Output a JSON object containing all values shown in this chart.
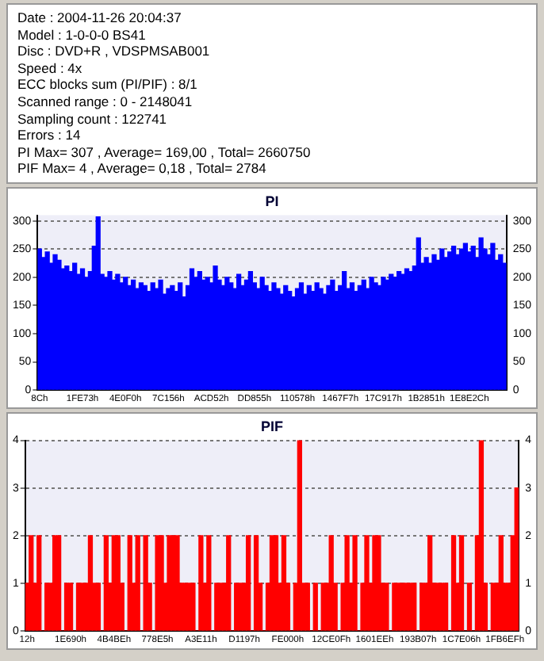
{
  "chart_data": [
    {
      "type": "other",
      "annotations": [
        "Date : 2004-11-26 20:04:37",
        "Model : 1-0-0-0 BS41",
        "Disc : DVD+R , VDSPMSAB001",
        "Speed : 4x",
        "ECC blocks sum (PI/PIF) : 8/1",
        "Scanned range : 0 - 2148041",
        "Sampling count : 122741",
        "Errors : 14",
        "PI Max= 307 , Average= 169,00 , Total= 2660750",
        "PIF Max= 4 , Average= 0,18 , Total= 2784"
      ]
    },
    {
      "type": "bar",
      "title": "PI",
      "color": "#0000ff",
      "grid": "y",
      "ylim": [
        0,
        310
      ],
      "yticks": [
        0,
        50,
        100,
        150,
        200,
        250,
        300
      ],
      "y2lim": [
        0,
        310
      ],
      "y2ticks": [
        0,
        50,
        100,
        150,
        200,
        250,
        300
      ],
      "categories": [
        "8Ch",
        null,
        null,
        null,
        null,
        null,
        null,
        null,
        null,
        null,
        null,
        "1FE73h",
        null,
        null,
        null,
        null,
        null,
        null,
        null,
        null,
        null,
        null,
        "4E0F0h",
        null,
        null,
        null,
        null,
        null,
        null,
        null,
        null,
        null,
        null,
        "7C156h",
        null,
        null,
        null,
        null,
        null,
        null,
        null,
        null,
        null,
        null,
        "ACD52h",
        null,
        null,
        null,
        null,
        null,
        null,
        null,
        null,
        null,
        null,
        "DD855h",
        null,
        null,
        null,
        null,
        null,
        null,
        null,
        null,
        null,
        null,
        "110578h",
        null,
        null,
        null,
        null,
        null,
        null,
        null,
        null,
        null,
        null,
        "1467F7h",
        null,
        null,
        null,
        null,
        null,
        null,
        null,
        null,
        null,
        null,
        "17C917h",
        null,
        null,
        null,
        null,
        null,
        null,
        null,
        null,
        null,
        null,
        "1B2851h",
        null,
        null,
        null,
        null,
        null,
        null,
        null,
        null,
        null,
        null,
        "1E8E2Ch",
        null,
        null,
        null,
        null,
        null,
        null,
        null,
        null,
        null
      ],
      "values": [
        250,
        235,
        245,
        225,
        240,
        230,
        215,
        220,
        210,
        225,
        205,
        215,
        200,
        210,
        255,
        307,
        205,
        200,
        210,
        195,
        205,
        190,
        200,
        185,
        195,
        180,
        190,
        185,
        175,
        190,
        180,
        195,
        170,
        180,
        185,
        175,
        190,
        165,
        185,
        215,
        200,
        210,
        195,
        200,
        190,
        220,
        195,
        185,
        200,
        190,
        180,
        205,
        185,
        195,
        210,
        190,
        180,
        200,
        185,
        175,
        190,
        180,
        170,
        185,
        175,
        165,
        180,
        190,
        170,
        185,
        175,
        190,
        180,
        170,
        185,
        195,
        175,
        185,
        210,
        180,
        190,
        175,
        185,
        195,
        180,
        200,
        190,
        185,
        200,
        195,
        205,
        200,
        210,
        205,
        215,
        210,
        220,
        270,
        225,
        235,
        225,
        240,
        230,
        250,
        235,
        245,
        255,
        240,
        250,
        260,
        245,
        255,
        235,
        270,
        250,
        240,
        260,
        230,
        240,
        225
      ]
    },
    {
      "type": "bar",
      "title": "PIF",
      "color": "#ff0000",
      "grid": "y",
      "ylim": [
        0,
        4
      ],
      "yticks": [
        0,
        1,
        2,
        3,
        4
      ],
      "y2lim": [
        0,
        4
      ],
      "y2ticks": [
        0,
        1,
        2,
        3,
        4
      ],
      "categories": [
        "12h",
        null,
        null,
        null,
        null,
        null,
        null,
        null,
        null,
        null,
        null,
        "1E690h",
        null,
        null,
        null,
        null,
        null,
        null,
        null,
        null,
        null,
        null,
        "4B4BEh",
        null,
        null,
        null,
        null,
        null,
        null,
        null,
        null,
        null,
        null,
        "778E5h",
        null,
        null,
        null,
        null,
        null,
        null,
        null,
        null,
        null,
        null,
        "A3E11h",
        null,
        null,
        null,
        null,
        null,
        null,
        null,
        null,
        null,
        null,
        "D1197h",
        null,
        null,
        null,
        null,
        null,
        null,
        null,
        null,
        null,
        null,
        "FE000h",
        null,
        null,
        null,
        null,
        null,
        null,
        null,
        null,
        null,
        null,
        "12CE0Fh",
        null,
        null,
        null,
        null,
        null,
        null,
        null,
        null,
        null,
        null,
        "1601EEh",
        null,
        null,
        null,
        null,
        null,
        null,
        null,
        null,
        null,
        null,
        "193B07h",
        null,
        null,
        null,
        null,
        null,
        null,
        null,
        null,
        null,
        null,
        "1C7E06h",
        null,
        null,
        null,
        null,
        null,
        null,
        null,
        null,
        null,
        null,
        "1FB6EFh",
        null,
        null,
        null
      ],
      "values": [
        1,
        2,
        1,
        2,
        0,
        1,
        1,
        2,
        2,
        0,
        1,
        1,
        0,
        1,
        1,
        1,
        2,
        1,
        1,
        0,
        2,
        1,
        2,
        2,
        1,
        0,
        2,
        1,
        2,
        0,
        2,
        1,
        0,
        2,
        2,
        1,
        2,
        2,
        2,
        1,
        1,
        1,
        1,
        0,
        2,
        1,
        2,
        0,
        1,
        1,
        1,
        2,
        0,
        1,
        1,
        1,
        2,
        0,
        2,
        1,
        0,
        1,
        2,
        2,
        1,
        2,
        1,
        0,
        1,
        4,
        1,
        1,
        0,
        1,
        0,
        1,
        1,
        2,
        1,
        0,
        1,
        2,
        1,
        2,
        0,
        1,
        2,
        1,
        2,
        2,
        1,
        1,
        0,
        1,
        1,
        1,
        1,
        1,
        1,
        0,
        1,
        1,
        2,
        1,
        1,
        1,
        1,
        0,
        2,
        1,
        2,
        0,
        1,
        0,
        2,
        4,
        1,
        0,
        1,
        1,
        2,
        1,
        1,
        2,
        3
      ]
    }
  ]
}
